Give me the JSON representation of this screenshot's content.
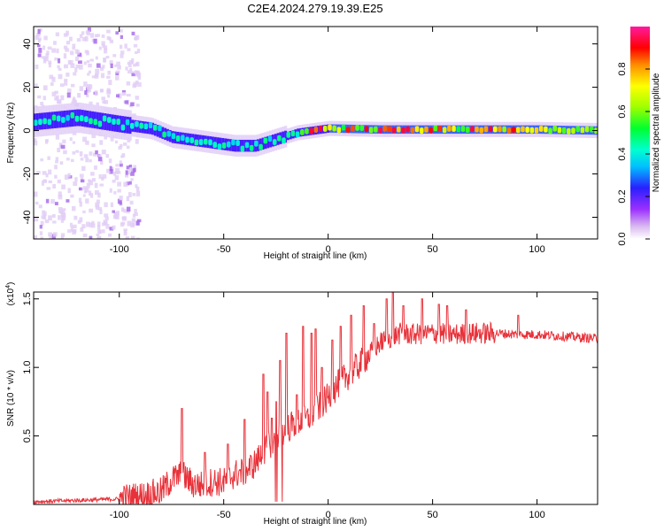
{
  "chart_data": [
    {
      "type": "heatmap",
      "title": "C2E4.2024.279.19.39.E25",
      "xlabel": "Height of straight line (km)",
      "ylabel": "Frequency (Hz)",
      "xlim": [
        -141,
        129
      ],
      "ylim": [
        -50,
        48
      ],
      "xticks": [
        -100,
        -50,
        0,
        50,
        100
      ],
      "yticks": [
        -40,
        -20,
        0,
        20,
        40
      ],
      "grid": false,
      "colorbar": {
        "label": "Normalized spectral amplitude",
        "range": [
          0,
          1
        ],
        "ticks": [
          0.0,
          0.2,
          0.4,
          0.6,
          0.8
        ],
        "colormap": "rainbow"
      },
      "dominant_frequency": {
        "x": [
          -141,
          -120,
          -100,
          -85,
          -75,
          -60,
          -45,
          -35,
          -25,
          -15,
          0,
          25,
          50,
          75,
          100,
          129
        ],
        "y": [
          4,
          6,
          3,
          1,
          -3,
          -5,
          -7,
          -7,
          -4,
          -1,
          1,
          0.5,
          0.5,
          0.5,
          0.5,
          0
        ]
      }
    },
    {
      "type": "line",
      "xlabel": "Height of straight line (km)",
      "ylabel": "SNR (10 * v/v)",
      "scale_label": "(x10^4)",
      "scale_base": "(x10",
      "scale_exp": "4",
      "scale_close": ")",
      "xlim": [
        -141,
        129
      ],
      "ylim": [
        0,
        1.55
      ],
      "xticks": [
        -100,
        -50,
        0,
        50,
        100
      ],
      "yticks": [
        0.5,
        1.0,
        1.5
      ],
      "grid": false,
      "series": [
        {
          "color": "#e8323a",
          "envelope_x": [
            -141,
            -120,
            -100,
            -90,
            -80,
            -75,
            -70,
            -65,
            -60,
            -55,
            -50,
            -45,
            -40,
            -35,
            -30,
            -25,
            -20,
            -15,
            -10,
            -5,
            0,
            5,
            10,
            15,
            20,
            25,
            30,
            35,
            40,
            50,
            60,
            70,
            80,
            90,
            100,
            110,
            120,
            129
          ],
          "envelope_y": [
            0.02,
            0.03,
            0.04,
            0.06,
            0.09,
            0.18,
            0.22,
            0.15,
            0.14,
            0.17,
            0.16,
            0.22,
            0.24,
            0.3,
            0.4,
            0.5,
            0.55,
            0.6,
            0.62,
            0.7,
            0.78,
            0.88,
            0.95,
            1.02,
            1.1,
            1.18,
            1.22,
            1.25,
            1.24,
            1.25,
            1.24,
            1.25,
            1.25,
            1.24,
            1.24,
            1.23,
            1.22,
            1.21
          ],
          "peaks_x": [
            -70,
            -59,
            -48,
            -40,
            -31,
            -29,
            -27,
            -25,
            -23,
            -20,
            -15,
            -12,
            -8,
            -6,
            -3,
            2,
            6,
            11,
            17,
            22,
            28,
            31,
            36,
            45,
            53,
            57,
            66,
            91
          ],
          "peaks_y": [
            0.7,
            0.38,
            0.44,
            0.62,
            0.95,
            0.82,
            0.63,
            0.75,
            1.05,
            1.25,
            0.8,
            1.3,
            1.25,
            1.28,
            1.0,
            1.2,
            1.3,
            1.38,
            1.45,
            1.32,
            1.5,
            1.55,
            1.45,
            1.5,
            1.46,
            1.45,
            1.42,
            1.38
          ]
        }
      ]
    }
  ]
}
